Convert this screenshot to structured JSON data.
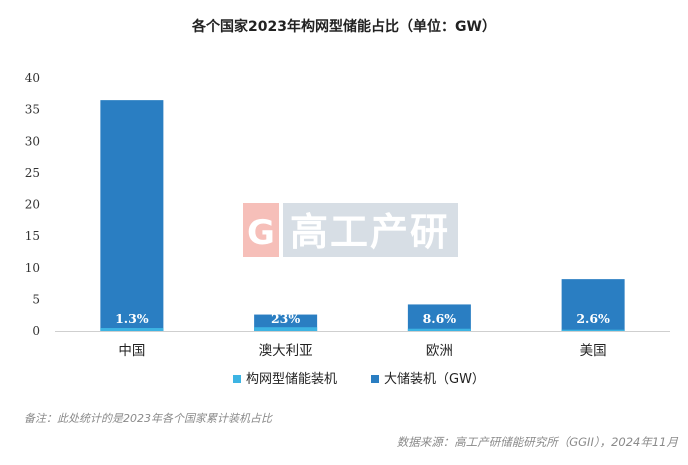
{
  "chart_data": {
    "type": "bar",
    "title": "各个国家2023年构网型储能占比（单位：GW）",
    "categories": [
      "中国",
      "澳大利亚",
      "欧洲",
      "美国"
    ],
    "series": [
      {
        "name": "构网型储能装机",
        "values": [
          0.47,
          0.6,
          0.36,
          0.21
        ],
        "color": "#3DB4E3"
      },
      {
        "name": "大储装机（GW）",
        "values": [
          36.5,
          2.6,
          4.2,
          8.2
        ],
        "color": "#2A7EC2"
      }
    ],
    "data_labels": [
      "1.3%",
      "23%",
      "8.6%",
      "2.6%"
    ],
    "ylim": [
      0,
      40
    ],
    "yticks": [
      0,
      5,
      10,
      15,
      20,
      25,
      30,
      35,
      40
    ],
    "grid": false,
    "legend_position": "bottom"
  },
  "watermark": {
    "letter": "G",
    "text": "高工产研"
  },
  "footnote": "备注：此处统计的是2023年各个国家累计装机占比",
  "source": "数据来源：高工产研储能研究所（GGII），2024年11月"
}
